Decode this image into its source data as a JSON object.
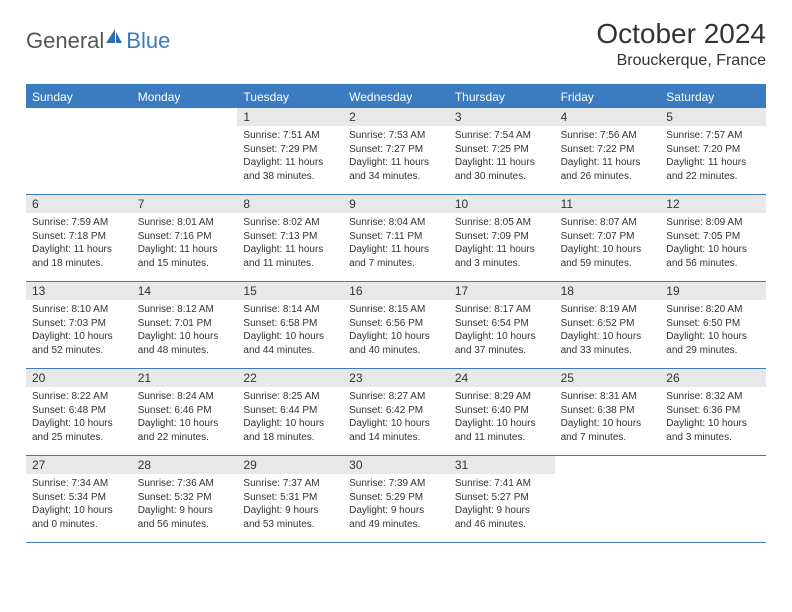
{
  "brand": {
    "part1": "General",
    "part2": "Blue"
  },
  "title": "October 2024",
  "location": "Brouckerque, France",
  "colors": {
    "headerBar": "#3b7bbf",
    "dayNumBg": "#e8e8e8",
    "text": "#333333",
    "bg": "#ffffff"
  },
  "weekdays": [
    "Sunday",
    "Monday",
    "Tuesday",
    "Wednesday",
    "Thursday",
    "Friday",
    "Saturday"
  ],
  "weeks": [
    [
      null,
      null,
      {
        "n": "1",
        "sr": "7:51 AM",
        "ss": "7:29 PM",
        "dl": "11 hours and 38 minutes."
      },
      {
        "n": "2",
        "sr": "7:53 AM",
        "ss": "7:27 PM",
        "dl": "11 hours and 34 minutes."
      },
      {
        "n": "3",
        "sr": "7:54 AM",
        "ss": "7:25 PM",
        "dl": "11 hours and 30 minutes."
      },
      {
        "n": "4",
        "sr": "7:56 AM",
        "ss": "7:22 PM",
        "dl": "11 hours and 26 minutes."
      },
      {
        "n": "5",
        "sr": "7:57 AM",
        "ss": "7:20 PM",
        "dl": "11 hours and 22 minutes."
      }
    ],
    [
      {
        "n": "6",
        "sr": "7:59 AM",
        "ss": "7:18 PM",
        "dl": "11 hours and 18 minutes."
      },
      {
        "n": "7",
        "sr": "8:01 AM",
        "ss": "7:16 PM",
        "dl": "11 hours and 15 minutes."
      },
      {
        "n": "8",
        "sr": "8:02 AM",
        "ss": "7:13 PM",
        "dl": "11 hours and 11 minutes."
      },
      {
        "n": "9",
        "sr": "8:04 AM",
        "ss": "7:11 PM",
        "dl": "11 hours and 7 minutes."
      },
      {
        "n": "10",
        "sr": "8:05 AM",
        "ss": "7:09 PM",
        "dl": "11 hours and 3 minutes."
      },
      {
        "n": "11",
        "sr": "8:07 AM",
        "ss": "7:07 PM",
        "dl": "10 hours and 59 minutes."
      },
      {
        "n": "12",
        "sr": "8:09 AM",
        "ss": "7:05 PM",
        "dl": "10 hours and 56 minutes."
      }
    ],
    [
      {
        "n": "13",
        "sr": "8:10 AM",
        "ss": "7:03 PM",
        "dl": "10 hours and 52 minutes."
      },
      {
        "n": "14",
        "sr": "8:12 AM",
        "ss": "7:01 PM",
        "dl": "10 hours and 48 minutes."
      },
      {
        "n": "15",
        "sr": "8:14 AM",
        "ss": "6:58 PM",
        "dl": "10 hours and 44 minutes."
      },
      {
        "n": "16",
        "sr": "8:15 AM",
        "ss": "6:56 PM",
        "dl": "10 hours and 40 minutes."
      },
      {
        "n": "17",
        "sr": "8:17 AM",
        "ss": "6:54 PM",
        "dl": "10 hours and 37 minutes."
      },
      {
        "n": "18",
        "sr": "8:19 AM",
        "ss": "6:52 PM",
        "dl": "10 hours and 33 minutes."
      },
      {
        "n": "19",
        "sr": "8:20 AM",
        "ss": "6:50 PM",
        "dl": "10 hours and 29 minutes."
      }
    ],
    [
      {
        "n": "20",
        "sr": "8:22 AM",
        "ss": "6:48 PM",
        "dl": "10 hours and 25 minutes."
      },
      {
        "n": "21",
        "sr": "8:24 AM",
        "ss": "6:46 PM",
        "dl": "10 hours and 22 minutes."
      },
      {
        "n": "22",
        "sr": "8:25 AM",
        "ss": "6:44 PM",
        "dl": "10 hours and 18 minutes."
      },
      {
        "n": "23",
        "sr": "8:27 AM",
        "ss": "6:42 PM",
        "dl": "10 hours and 14 minutes."
      },
      {
        "n": "24",
        "sr": "8:29 AM",
        "ss": "6:40 PM",
        "dl": "10 hours and 11 minutes."
      },
      {
        "n": "25",
        "sr": "8:31 AM",
        "ss": "6:38 PM",
        "dl": "10 hours and 7 minutes."
      },
      {
        "n": "26",
        "sr": "8:32 AM",
        "ss": "6:36 PM",
        "dl": "10 hours and 3 minutes."
      }
    ],
    [
      {
        "n": "27",
        "sr": "7:34 AM",
        "ss": "5:34 PM",
        "dl": "10 hours and 0 minutes."
      },
      {
        "n": "28",
        "sr": "7:36 AM",
        "ss": "5:32 PM",
        "dl": "9 hours and 56 minutes."
      },
      {
        "n": "29",
        "sr": "7:37 AM",
        "ss": "5:31 PM",
        "dl": "9 hours and 53 minutes."
      },
      {
        "n": "30",
        "sr": "7:39 AM",
        "ss": "5:29 PM",
        "dl": "9 hours and 49 minutes."
      },
      {
        "n": "31",
        "sr": "7:41 AM",
        "ss": "5:27 PM",
        "dl": "9 hours and 46 minutes."
      },
      null,
      null
    ]
  ],
  "labels": {
    "sunrise": "Sunrise:",
    "sunset": "Sunset:",
    "daylight": "Daylight:"
  }
}
